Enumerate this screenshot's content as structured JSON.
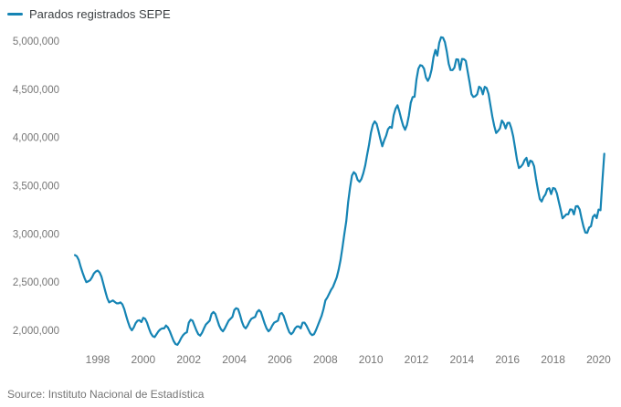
{
  "legend": {
    "label": "Parados registrados SEPE"
  },
  "source": {
    "text": "Source: Instituto Nacional de Estadística"
  },
  "colors": {
    "line": "#1584b4",
    "axis_label": "#767676",
    "legend_text": "#3c4043",
    "source_text": "#757575",
    "background": "#ffffff"
  },
  "chart_data": {
    "type": "line",
    "title": "Parados registrados SEPE",
    "legend_entries": [
      "Parados registrados SEPE"
    ],
    "legend_position": "top-left",
    "grid": false,
    "frequency": "monthly",
    "start": "1997-01",
    "end": "2020-04",
    "unit": "persons",
    "xlabel": "",
    "ylabel": "",
    "x_ticks": [
      1998,
      2000,
      2002,
      2004,
      2006,
      2008,
      2010,
      2012,
      2014,
      2016,
      2018,
      2020
    ],
    "x_tick_labels": [
      "1998",
      "2000",
      "2002",
      "2004",
      "2006",
      "2008",
      "2010",
      "2012",
      "2014",
      "2016",
      "2018",
      "2020"
    ],
    "y_ticks": [
      2000000,
      2500000,
      3000000,
      3500000,
      4000000,
      4500000,
      5000000
    ],
    "y_tick_labels": [
      "2,000,000",
      "2,500,000",
      "3,000,000",
      "3,500,000",
      "4,000,000",
      "4,500,000",
      "5,000,000"
    ],
    "ylim": [
      2000000,
      5000000
    ],
    "xlim": [
      1997.0,
      2020.33
    ],
    "values": [
      2780000,
      2768000,
      2730000,
      2660000,
      2600000,
      2545000,
      2500000,
      2508000,
      2520000,
      2550000,
      2590000,
      2610000,
      2620000,
      2600000,
      2555000,
      2480000,
      2405000,
      2335000,
      2290000,
      2300000,
      2310000,
      2295000,
      2280000,
      2280000,
      2290000,
      2270000,
      2220000,
      2150000,
      2085000,
      2030000,
      2000000,
      2030000,
      2075000,
      2100000,
      2105000,
      2085000,
      2130000,
      2120000,
      2080000,
      2020000,
      1970000,
      1940000,
      1930000,
      1960000,
      1990000,
      2010000,
      2020000,
      2020000,
      2050000,
      2030000,
      1990000,
      1940000,
      1890000,
      1858000,
      1850000,
      1880000,
      1920000,
      1950000,
      1970000,
      1980000,
      2080000,
      2110000,
      2100000,
      2050000,
      2000000,
      1960000,
      1945000,
      1975000,
      2020000,
      2060000,
      2080000,
      2100000,
      2170000,
      2190000,
      2170000,
      2110000,
      2050000,
      2010000,
      1990000,
      2020000,
      2060000,
      2100000,
      2120000,
      2140000,
      2210000,
      2230000,
      2220000,
      2160000,
      2090000,
      2040000,
      2020000,
      2050000,
      2090000,
      2120000,
      2130000,
      2140000,
      2190000,
      2210000,
      2190000,
      2130000,
      2070000,
      2020000,
      1990000,
      2010000,
      2050000,
      2080000,
      2090000,
      2100000,
      2170000,
      2180000,
      2150000,
      2090000,
      2030000,
      1980000,
      1960000,
      1980000,
      2020000,
      2040000,
      2040000,
      2020000,
      2080000,
      2080000,
      2050000,
      2010000,
      1970000,
      1950000,
      1960000,
      2000000,
      2050000,
      2100000,
      2150000,
      2220000,
      2310000,
      2340000,
      2380000,
      2420000,
      2450000,
      2500000,
      2550000,
      2630000,
      2730000,
      2860000,
      3000000,
      3130000,
      3330000,
      3480000,
      3605000,
      3640000,
      3620000,
      3560000,
      3540000,
      3570000,
      3630000,
      3710000,
      3820000,
      3924000,
      4049000,
      4131000,
      4167000,
      4142000,
      4066000,
      3982000,
      3909000,
      3970000,
      4018000,
      4086000,
      4110000,
      4100000,
      4231000,
      4299000,
      4334000,
      4269000,
      4190000,
      4122000,
      4080000,
      4130000,
      4226000,
      4360000,
      4420000,
      4422000,
      4600000,
      4712000,
      4750000,
      4744000,
      4714000,
      4622000,
      4587000,
      4626000,
      4705000,
      4834000,
      4908000,
      4849000,
      4981000,
      5040000,
      5035000,
      4989000,
      4890000,
      4764000,
      4699000,
      4699000,
      4724000,
      4811000,
      4809000,
      4701000,
      4814000,
      4812000,
      4795000,
      4684000,
      4572000,
      4450000,
      4420000,
      4428000,
      4448000,
      4527000,
      4512000,
      4448000,
      4526000,
      4512000,
      4452000,
      4333000,
      4216000,
      4120000,
      4047000,
      4068000,
      4094000,
      4176000,
      4149000,
      4094000,
      4151000,
      4153000,
      4095000,
      4011000,
      3891000,
      3767000,
      3683000,
      3697000,
      3721000,
      3765000,
      3789000,
      3703000,
      3760000,
      3751000,
      3702000,
      3573000,
      3461000,
      3362000,
      3336000,
      3382000,
      3410000,
      3467000,
      3474000,
      3413000,
      3476000,
      3470000,
      3422000,
      3336000,
      3252000,
      3162000,
      3182000,
      3203000,
      3203000,
      3254000,
      3252000,
      3202000,
      3286000,
      3289000,
      3255000,
      3163000,
      3079000,
      3015000,
      3011000,
      3066000,
      3080000,
      3177000,
      3199000,
      3164000,
      3253000,
      3246000,
      3548000,
      3831000
    ]
  }
}
